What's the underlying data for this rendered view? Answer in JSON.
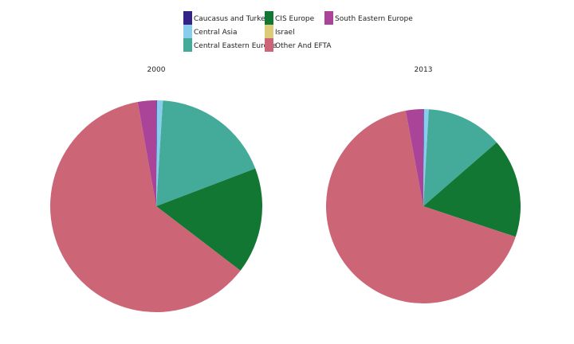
{
  "colors": {
    "Caucasus and Turkey": "#332288",
    "Central Asia": "#88ccee",
    "Central Eastern Europe": "#44aa99",
    "CIS Europe": "#117733",
    "Israel": "#ddcc77",
    "Other And EFTA": "#cc6677",
    "South Eastern Europe": "#aa4499"
  },
  "chart_data": {
    "type": "pie",
    "legend": {
      "placement": "top",
      "entries": [
        "Caucasus and Turkey",
        "Central Asia",
        "Central Eastern Europe",
        "CIS Europe",
        "Israel",
        "Other And EFTA",
        "South Eastern Europe"
      ]
    },
    "pies": [
      {
        "title": "2000",
        "slices": [
          {
            "name": "Caucasus and Turkey",
            "value": 0.1
          },
          {
            "name": "Central Asia",
            "value": 0.9
          },
          {
            "name": "Central Eastern Europe",
            "value": 18.2
          },
          {
            "name": "CIS Europe",
            "value": 16.2
          },
          {
            "name": "Israel",
            "value": 0.0
          },
          {
            "name": "Other And EFTA",
            "value": 61.8
          },
          {
            "name": "South Eastern Europe",
            "value": 2.8
          }
        ]
      },
      {
        "title": "2013",
        "slices": [
          {
            "name": "Caucasus and Turkey",
            "value": 0.1
          },
          {
            "name": "Central Asia",
            "value": 0.8
          },
          {
            "name": "Central Eastern Europe",
            "value": 12.7
          },
          {
            "name": "CIS Europe",
            "value": 16.5
          },
          {
            "name": "Israel",
            "value": 0.0
          },
          {
            "name": "Other And EFTA",
            "value": 67.0
          },
          {
            "name": "South Eastern Europe",
            "value": 2.9
          }
        ]
      }
    ]
  }
}
